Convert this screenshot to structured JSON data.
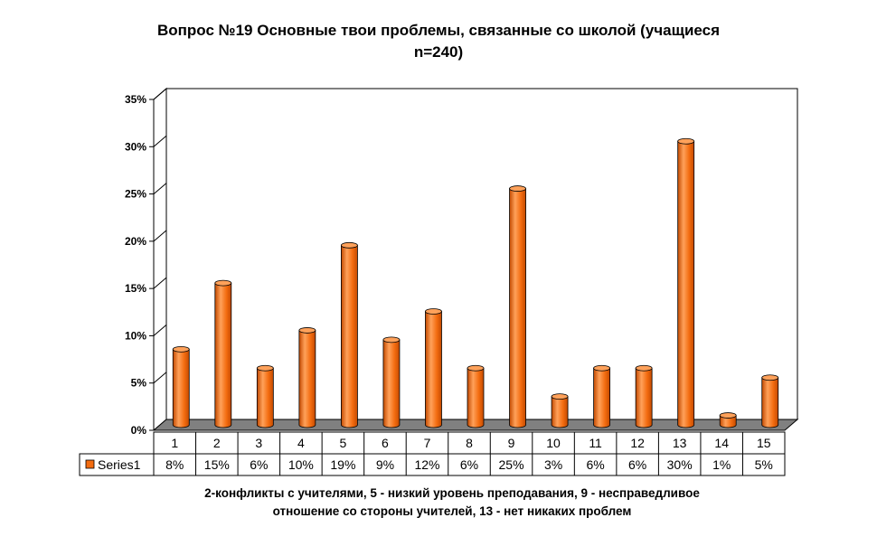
{
  "title_line1": "Вопрос №19 Основные твои проблемы, связанные со школой (учащиеся",
  "title_line2": "n=240)",
  "caption_line1": "2-конфликты с учителями, 5 - низкий уровень преподавания, 9 - несправедливое",
  "caption_line2": "отношение со стороны учителей, 13 - нет никаких проблем",
  "colors": {
    "bar": "#f36c10",
    "bar_dark": "#c44a00",
    "bar_light": "#ffa15a",
    "floor": "#808080"
  },
  "chart_data": {
    "type": "bar",
    "title": "Вопрос №19 Основные твои проблемы, связанные со школой (учащиеся n=240)",
    "categories": [
      "1",
      "2",
      "3",
      "4",
      "5",
      "6",
      "7",
      "8",
      "9",
      "10",
      "11",
      "12",
      "13",
      "14",
      "15"
    ],
    "series": [
      {
        "name": "Series1",
        "values": [
          8,
          15,
          6,
          10,
          19,
          9,
          12,
          6,
          25,
          3,
          6,
          6,
          30,
          1,
          5
        ],
        "labels": [
          "8%",
          "15%",
          "6%",
          "10%",
          "19%",
          "9%",
          "12%",
          "6%",
          "25%",
          "3%",
          "6%",
          "6%",
          "30%",
          "1%",
          "5%"
        ]
      }
    ],
    "ylim": [
      0,
      35
    ],
    "y_ticks": [
      "0%",
      "5%",
      "10%",
      "15%",
      "20%",
      "25%",
      "30%",
      "35%"
    ],
    "grid": true,
    "legend": "data-table"
  }
}
